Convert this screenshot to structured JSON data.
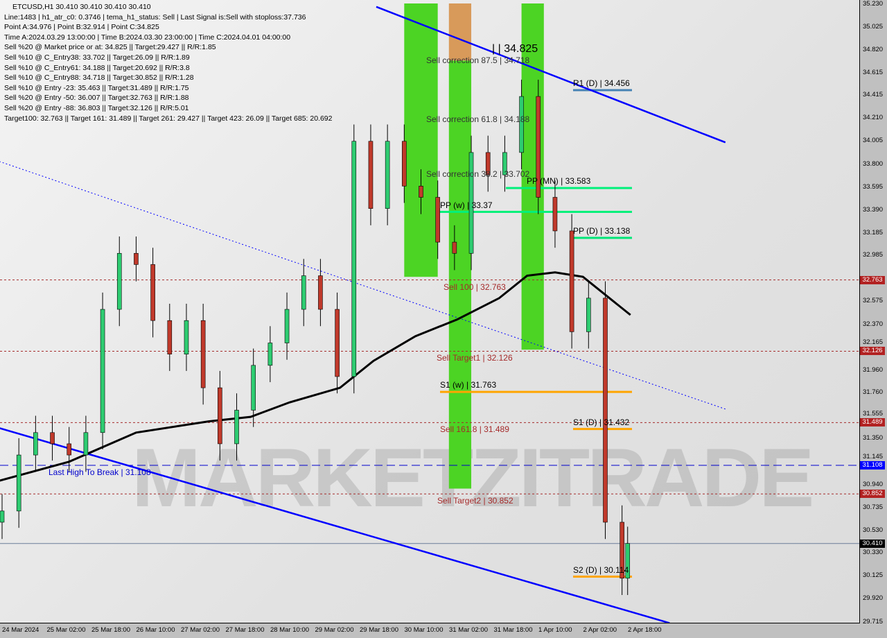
{
  "chart_data": {
    "type": "candlestick",
    "symbol": "ETCUSD,H1",
    "header": "ETCUSD,H1  30.410 30.410 30.410 30.410",
    "info_lines": [
      "Line:1483 | h1_atr_c0: 0.3746 | tema_h1_status: Sell | Last Signal is:Sell with stoploss:37.736",
      "Point A:34.976 | Point B:32.914 | Point C:34.825",
      "Time A:2024.03.29 13:00:00 | Time B:2024.03.30 23:00:00 | Time C:2024.04.01 04:00:00",
      "Sell %20 @ Market price or at: 34.825 || Target:29.427 || R/R:1.85",
      "Sell %10 @ C_Entry38: 33.702 || Target:26.09 || R/R:1.89",
      "Sell %10 @ C_Entry61: 34.188 || Target:20.692 || R/R:3.8",
      "Sell %10 @ C_Entry88: 34.718 || Target:30.852 || R/R:1.28",
      "Sell %10 @ Entry -23: 35.463 || Target:31.489 || R/R:1.75",
      "Sell %20 @ Entry -50: 36.007 || Target:32.763 || R/R:1.88",
      "Sell %20 @ Entry -88: 36.803 || Target:32.126 || R/R:5.01",
      "Target100: 32.763 || Target 161: 31.489 || Target 261: 29.427 || Target 423: 26.09 || Target 685: 20.692"
    ],
    "ylim": [
      29.715,
      35.23
    ],
    "y_ticks": [
      "35.230",
      "35.025",
      "34.820",
      "34.615",
      "34.415",
      "34.210",
      "34.005",
      "33.800",
      "33.595",
      "33.390",
      "33.185",
      "32.985",
      "32.575",
      "32.370",
      "32.165",
      "31.960",
      "31.760",
      "31.555",
      "31.350",
      "31.145",
      "30.940",
      "30.735",
      "30.530",
      "30.330",
      "30.125",
      "29.920",
      "29.715"
    ],
    "x_ticks": [
      "24 Mar 2024",
      "25 Mar 02:00",
      "25 Mar 18:00",
      "26 Mar 10:00",
      "27 Mar 02:00",
      "27 Mar 18:00",
      "28 Mar 10:00",
      "29 Mar 02:00",
      "29 Mar 18:00",
      "30 Mar 10:00",
      "31 Mar 02:00",
      "31 Mar 18:00",
      "1 Apr 10:00",
      "2 Apr 02:00",
      "2 Apr 18:00"
    ],
    "price_tags": [
      {
        "value": "32.763",
        "color": "#b22222"
      },
      {
        "value": "32.126",
        "color": "#b22222"
      },
      {
        "value": "31.489",
        "color": "#b22222"
      },
      {
        "value": "31.108",
        "color": "#0000ff"
      },
      {
        "value": "30.852",
        "color": "#b22222"
      },
      {
        "value": "30.410",
        "color": "#000000"
      }
    ],
    "closes": [
      [
        "2024-03-24T10:00",
        30.7
      ],
      [
        "2024-03-24T16:00",
        31.2
      ],
      [
        "2024-03-24T22:00",
        31.4
      ],
      [
        "2024-03-25T04:00",
        31.3
      ],
      [
        "2024-03-25T10:00",
        31.2
      ],
      [
        "2024-03-25T16:00",
        31.4
      ],
      [
        "2024-03-25T22:00",
        32.5
      ],
      [
        "2024-03-26T04:00",
        33.0
      ],
      [
        "2024-03-26T10:00",
        32.9
      ],
      [
        "2024-03-26T16:00",
        32.4
      ],
      [
        "2024-03-26T22:00",
        32.1
      ],
      [
        "2024-03-27T04:00",
        32.4
      ],
      [
        "2024-03-27T10:00",
        31.8
      ],
      [
        "2024-03-27T16:00",
        31.3
      ],
      [
        "2024-03-27T22:00",
        31.6
      ],
      [
        "2024-03-28T04:00",
        32.0
      ],
      [
        "2024-03-28T10:00",
        32.2
      ],
      [
        "2024-03-28T16:00",
        32.5
      ],
      [
        "2024-03-28T22:00",
        32.8
      ],
      [
        "2024-03-29T04:00",
        32.5
      ],
      [
        "2024-03-29T10:00",
        31.9
      ],
      [
        "2024-03-29T16:00",
        34.0
      ],
      [
        "2024-03-29T22:00",
        33.4
      ],
      [
        "2024-03-30T04:00",
        34.0
      ],
      [
        "2024-03-30T10:00",
        33.6
      ],
      [
        "2024-03-30T16:00",
        33.5
      ],
      [
        "2024-03-30T22:00",
        33.1
      ],
      [
        "2024-03-31T04:00",
        33.0
      ],
      [
        "2024-03-31T10:00",
        33.9
      ],
      [
        "2024-03-31T16:00",
        33.7
      ],
      [
        "2024-03-31T22:00",
        33.9
      ],
      [
        "2024-04-01T04:00",
        34.4
      ],
      [
        "2024-04-01T10:00",
        33.5
      ],
      [
        "2024-04-01T16:00",
        33.2
      ],
      [
        "2024-04-01T22:00",
        32.3
      ],
      [
        "2024-04-02T04:00",
        32.6
      ],
      [
        "2024-04-02T10:00",
        30.6
      ],
      [
        "2024-04-02T16:00",
        30.1
      ],
      [
        "2024-04-02T18:00",
        30.41
      ]
    ],
    "ma_black": [
      [
        "2024-03-24T09:00",
        30.97
      ],
      [
        "2024-03-25T10:00",
        31.14
      ],
      [
        "2024-03-26T10:00",
        31.4
      ],
      [
        "2024-03-27T12:00",
        31.5
      ],
      [
        "2024-03-28T03:00",
        31.54
      ],
      [
        "2024-03-28T17:00",
        31.67
      ],
      [
        "2024-03-29T11:00",
        31.8
      ],
      [
        "2024-03-29T23:00",
        32.04
      ],
      [
        "2024-03-30T14:00",
        32.26
      ],
      [
        "2024-03-31T05:00",
        32.41
      ],
      [
        "2024-03-31T20:00",
        32.6
      ],
      [
        "2024-04-01T06:00",
        32.8
      ],
      [
        "2024-04-01T16:00",
        32.83
      ],
      [
        "2024-04-02T02:00",
        32.79
      ],
      [
        "2024-04-02T19:00",
        32.45
      ]
    ],
    "channel_lines": [
      {
        "from": [
          "2024-03-30T00:00",
          35.2
        ],
        "to": [
          "2024-04-04T05:00",
          33.99
        ],
        "color": "#0000ff",
        "style": "solid"
      },
      {
        "from": [
          "2024-03-24T09:00",
          31.44
        ],
        "to": [
          "2024-04-03T09:00",
          29.7
        ],
        "color": "#0000ff",
        "style": "solid"
      },
      {
        "from": [
          "2024-03-24T09:00",
          33.82
        ],
        "to": [
          "2024-04-04T05:00",
          31.61
        ],
        "color": "#0000ff",
        "style": "dotted"
      }
    ],
    "zones": [
      {
        "from": "2024-03-30T10:00",
        "to": "2024-03-30T22:00",
        "top": 35.23,
        "bottom": 32.79,
        "color": "#4cd424"
      },
      {
        "from": "2024-03-31T02:00",
        "to": "2024-03-31T10:00",
        "top": 35.23,
        "bottom": 34.72,
        "color": "#d89a5a"
      },
      {
        "from": "2024-03-31T02:00",
        "to": "2024-03-31T10:00",
        "top": 34.72,
        "bottom": 30.9,
        "color": "#4cd424"
      },
      {
        "from": "2024-04-01T04:00",
        "to": "2024-04-01T12:00",
        "top": 35.23,
        "bottom": 32.14,
        "color": "#4cd424"
      }
    ],
    "levels": [
      {
        "label": "Sell 100 | 32.763",
        "value": 32.763,
        "color": "#a52a2a",
        "style": "dashed"
      },
      {
        "label": "Sell Target1 | 32.126",
        "value": 32.126,
        "color": "#a52a2a",
        "style": "dashed"
      },
      {
        "label": "Sell 161.8 | 31.489",
        "value": 31.489,
        "color": "#a52a2a",
        "style": "dashed"
      },
      {
        "label": "Sell Target2 | 30.852",
        "value": 30.852,
        "color": "#a52a2a",
        "style": "dashed"
      },
      {
        "label": "Last High To Break | 31.108",
        "value": 31.108,
        "color": "#0000cd",
        "style": "longdash"
      },
      {
        "label": "S1 (w) | 31.763",
        "value": 31.763,
        "color": "#ffa500",
        "style": "solid"
      },
      {
        "label": "S1 (D) | 31.432",
        "value": 31.432,
        "color": "#ffa500",
        "style": "solid"
      },
      {
        "label": "S2 (D) | 30.114",
        "value": 30.114,
        "color": "#ffa500",
        "style": "solid"
      },
      {
        "label": "PP (D) | 33.138",
        "value": 33.138,
        "color": "#00e676",
        "style": "solid"
      },
      {
        "label": "PP (MN) | 33.583",
        "value": 33.583,
        "color": "#00f07a",
        "style": "solid"
      },
      {
        "label": "PP (w) | 33.37",
        "value": 33.37,
        "color": "#00f07a",
        "style": "solid"
      },
      {
        "label": "R1 (D) | 34.456",
        "value": 34.456,
        "color": "#4682b4",
        "style": "solid"
      },
      {
        "label": "Sell correction 87.5 | 34.718",
        "value": 34.718,
        "color": "#333333",
        "style": "none"
      },
      {
        "label": "Sell correction 61.8 | 34.188",
        "value": 34.188,
        "color": "#333333",
        "style": "none"
      },
      {
        "label": "Sell correction 38.2 | 33.702",
        "value": 33.702,
        "color": "#333333",
        "style": "none"
      },
      {
        "label": "| | 34.825",
        "value": 34.825,
        "color": "#000000",
        "style": "none"
      }
    ],
    "current_price": 30.41,
    "watermark": "MARKETZITRADE"
  }
}
